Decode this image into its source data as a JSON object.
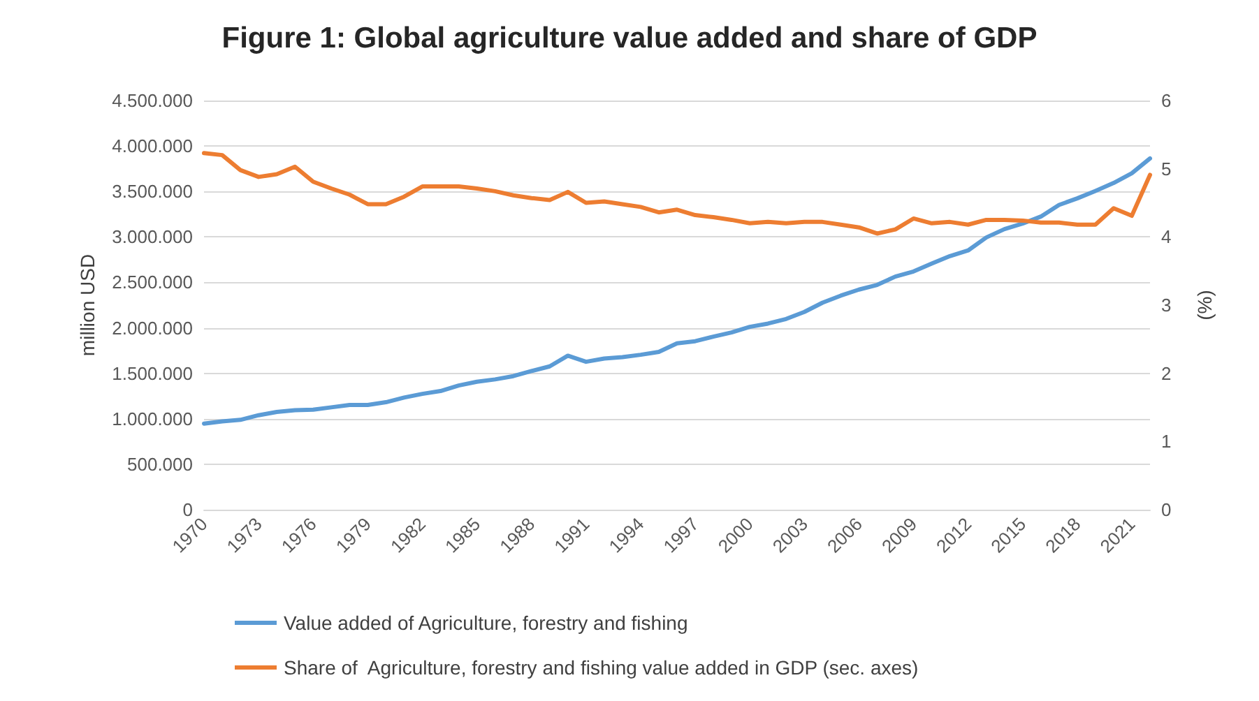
{
  "chart_data": {
    "type": "line",
    "title": "Figure 1: Global agriculture value added and share of GDP",
    "ylabel": "million USD",
    "y2label": "(%)",
    "categories": [
      "1970",
      null,
      null,
      "1973",
      null,
      null,
      "1976",
      null,
      null,
      "1979",
      null,
      null,
      "1982",
      null,
      null,
      "1985",
      null,
      null,
      "1988",
      null,
      null,
      "1991",
      null,
      null,
      "1994",
      null,
      null,
      "1997",
      null,
      null,
      "2000",
      null,
      null,
      "2003",
      null,
      null,
      "2006",
      null,
      null,
      "2009",
      null,
      null,
      "2012",
      null,
      null,
      "2015",
      null,
      null,
      "2018",
      null,
      null,
      "2021",
      null
    ],
    "series": [
      {
        "name": "Value added of Agriculture, forestry and fishing",
        "color": "#5b9bd5",
        "values": [
          947000,
          972000,
          988000,
          1039000,
          1075000,
          1095000,
          1100000,
          1126000,
          1152000,
          1152000,
          1182000,
          1233000,
          1274000,
          1305000,
          1366000,
          1407000,
          1433000,
          1469000,
          1525000,
          1576000,
          1694000,
          1627000,
          1663000,
          1678000,
          1704000,
          1735000,
          1830000,
          1853000,
          1904000,
          1950000,
          2011000,
          2047000,
          2098000,
          2175000,
          2277000,
          2354000,
          2421000,
          2472000,
          2564000,
          2620000,
          2707000,
          2789000,
          2851000,
          2994000,
          3086000,
          3147000,
          3224000,
          3352000,
          3424000,
          3506000,
          3593000,
          3700000,
          3864000
        ]
      },
      {
        "name": "Share of  Agriculture, forestry and fishing value added in GDP (sec. axes)",
        "color": "#ed7d31",
        "axis": "y2",
        "values": [
          5.23,
          5.2,
          4.98,
          4.88,
          4.92,
          5.03,
          4.81,
          4.71,
          4.62,
          4.48,
          4.48,
          4.59,
          4.74,
          4.74,
          4.74,
          4.71,
          4.67,
          4.61,
          4.57,
          4.54,
          4.66,
          4.5,
          4.52,
          4.48,
          4.44,
          4.36,
          4.4,
          4.32,
          4.29,
          4.25,
          4.2,
          4.22,
          4.2,
          4.22,
          4.22,
          4.18,
          4.14,
          4.05,
          4.11,
          4.27,
          4.2,
          4.22,
          4.18,
          4.25,
          4.25,
          4.24,
          4.21,
          4.21,
          4.18,
          4.18,
          4.42,
          4.31,
          4.91
        ]
      }
    ],
    "ylim": [
      0,
      4500000
    ],
    "yticks": [
      {
        "value": 0,
        "label": "0"
      },
      {
        "value": 500000,
        "label": "500.000"
      },
      {
        "value": 1000000,
        "label": "1.000.000"
      },
      {
        "value": 1500000,
        "label": "1.500.000"
      },
      {
        "value": 2000000,
        "label": "2.000.000"
      },
      {
        "value": 2500000,
        "label": "2.500.000"
      },
      {
        "value": 3000000,
        "label": "3.000.000"
      },
      {
        "value": 3500000,
        "label": "3.500.000"
      },
      {
        "value": 4000000,
        "label": "4.000.000"
      },
      {
        "value": 4500000,
        "label": "4.500.000"
      }
    ],
    "y2lim": [
      0,
      6
    ],
    "y2ticks": [
      0,
      1,
      2,
      3,
      4,
      5,
      6
    ],
    "grid": "y",
    "legend": "bottom",
    "marker": "none",
    "line_style": "solid"
  }
}
